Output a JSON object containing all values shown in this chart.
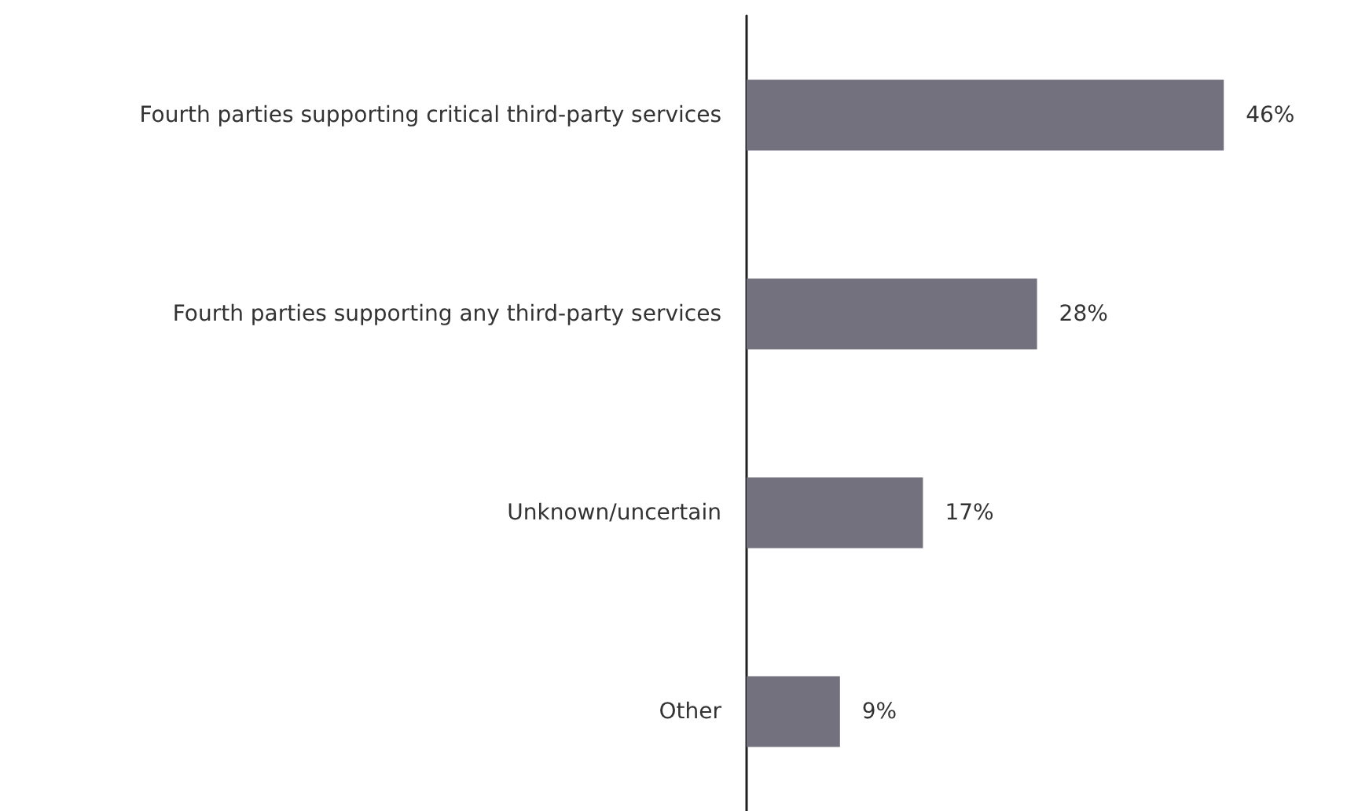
{
  "chart_data": {
    "type": "bar",
    "orientation": "horizontal",
    "categories": [
      "Fourth parties supporting critical third-party services",
      "Fourth parties supporting any third-party services",
      "Unknown/uncertain",
      "Other"
    ],
    "values": [
      46,
      28,
      17,
      9
    ],
    "color": "#72717d",
    "value_labels": [
      "46%",
      "28%",
      "17%",
      "9%"
    ]
  }
}
